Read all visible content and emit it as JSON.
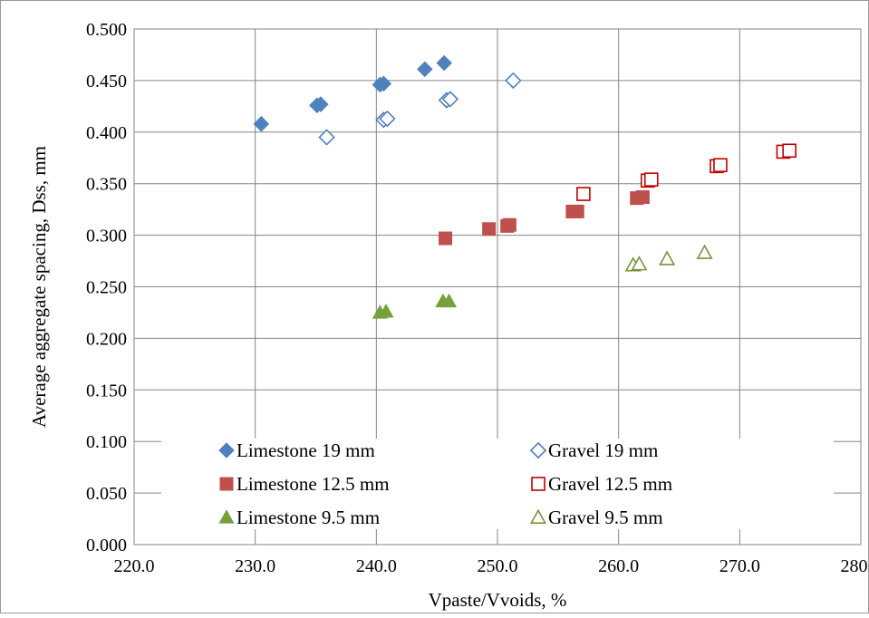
{
  "chart_data": {
    "type": "scatter",
    "title": "",
    "xlabel": "Vpaste/Vvoids, %",
    "ylabel": "Average aggregate spacing, Dss, mm",
    "xlim": [
      220.0,
      280.0
    ],
    "ylim": [
      0.0,
      0.5
    ],
    "x_ticks": [
      "220.0",
      "230.0",
      "240.0",
      "250.0",
      "260.0",
      "270.0",
      "280.0"
    ],
    "y_ticks": [
      "0.000",
      "0.050",
      "0.100",
      "0.150",
      "0.200",
      "0.250",
      "0.300",
      "0.350",
      "0.400",
      "0.450",
      "0.500"
    ],
    "grid": true,
    "legend_position": "bottom-inside",
    "series": [
      {
        "name": "Limestone 19 mm",
        "marker": "diamond",
        "filled": true,
        "color": "#4f81bd",
        "points": [
          [
            230.5,
            0.408
          ],
          [
            235.1,
            0.426
          ],
          [
            235.4,
            0.427
          ],
          [
            240.3,
            0.446
          ],
          [
            240.6,
            0.447
          ],
          [
            244.0,
            0.461
          ],
          [
            245.6,
            0.467
          ]
        ]
      },
      {
        "name": "Gravel 19 mm",
        "marker": "diamond",
        "filled": false,
        "color": "#4f81bd",
        "points": [
          [
            235.9,
            0.395
          ],
          [
            240.6,
            0.412
          ],
          [
            240.9,
            0.413
          ],
          [
            245.8,
            0.431
          ],
          [
            246.1,
            0.432
          ],
          [
            251.3,
            0.45
          ]
        ]
      },
      {
        "name": "Limestone 12.5 mm",
        "marker": "square",
        "filled": true,
        "color": "#c0504d",
        "points": [
          [
            245.7,
            0.297
          ],
          [
            249.3,
            0.306
          ],
          [
            250.8,
            0.309
          ],
          [
            251.0,
            0.31
          ],
          [
            256.2,
            0.323
          ],
          [
            256.6,
            0.323
          ],
          [
            261.5,
            0.336
          ],
          [
            262.0,
            0.337
          ]
        ]
      },
      {
        "name": "Gravel 12.5 mm",
        "marker": "square",
        "filled": false,
        "color": "#c00000",
        "points": [
          [
            257.1,
            0.34
          ],
          [
            262.4,
            0.353
          ],
          [
            262.7,
            0.354
          ],
          [
            268.1,
            0.367
          ],
          [
            268.4,
            0.368
          ],
          [
            273.6,
            0.381
          ],
          [
            274.1,
            0.382
          ]
        ]
      },
      {
        "name": "Limestone 9.5 mm",
        "marker": "triangle",
        "filled": true,
        "color": "#77a03c",
        "points": [
          [
            240.3,
            0.225
          ],
          [
            240.8,
            0.226
          ],
          [
            245.5,
            0.236
          ],
          [
            246.0,
            0.236
          ]
        ]
      },
      {
        "name": "Gravel 9.5 mm",
        "marker": "triangle",
        "filled": false,
        "color": "#77933c",
        "points": [
          [
            261.2,
            0.271
          ],
          [
            261.7,
            0.272
          ],
          [
            264.0,
            0.277
          ],
          [
            267.1,
            0.283
          ]
        ]
      }
    ]
  }
}
